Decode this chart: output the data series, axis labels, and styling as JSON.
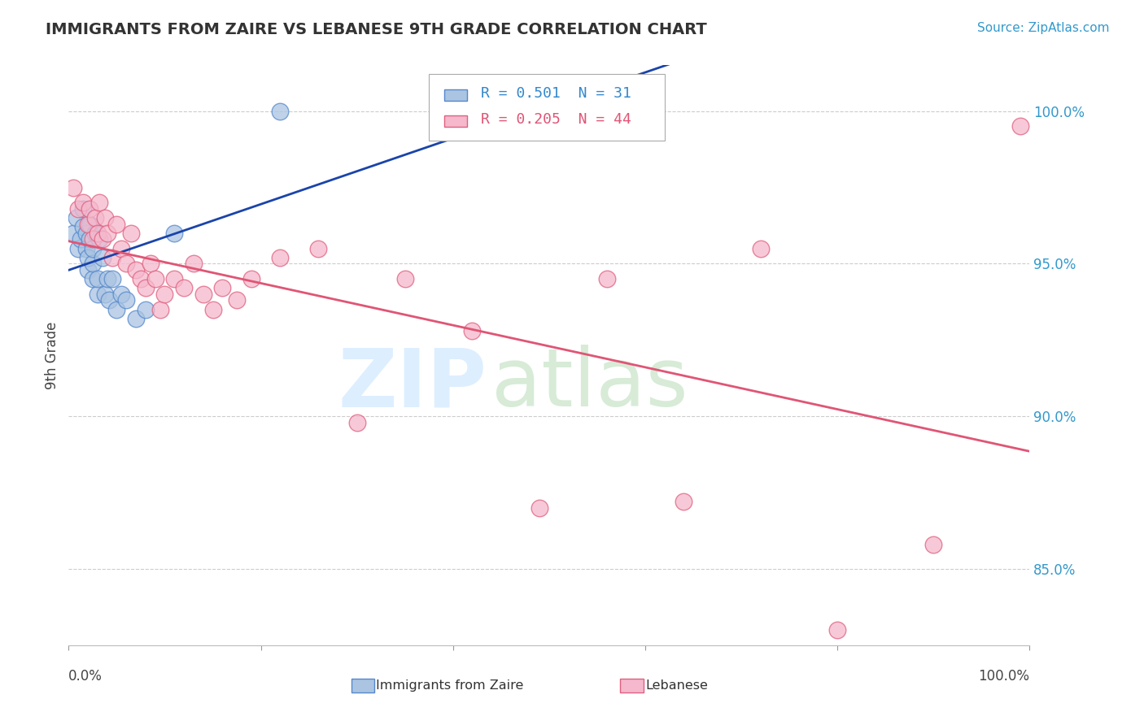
{
  "title": "IMMIGRANTS FROM ZAIRE VS LEBANESE 9TH GRADE CORRELATION CHART",
  "source": "Source: ZipAtlas.com",
  "ylabel": "9th Grade",
  "y_ticks": [
    0.85,
    0.9,
    0.95,
    1.0
  ],
  "y_tick_labels": [
    "85.0%",
    "90.0%",
    "95.0%",
    "100.0%"
  ],
  "x_lim": [
    0.0,
    1.0
  ],
  "y_lim": [
    0.825,
    1.015
  ],
  "blue_R": 0.501,
  "blue_N": 31,
  "pink_R": 0.205,
  "pink_N": 44,
  "blue_color": "#aac4e2",
  "blue_edge": "#5588cc",
  "pink_color": "#f5b8cc",
  "pink_edge": "#e06080",
  "blue_line_color": "#1a44aa",
  "pink_line_color": "#e05575",
  "blue_x": [
    0.005,
    0.008,
    0.01,
    0.012,
    0.015,
    0.015,
    0.018,
    0.018,
    0.02,
    0.02,
    0.022,
    0.022,
    0.025,
    0.025,
    0.025,
    0.028,
    0.03,
    0.03,
    0.032,
    0.035,
    0.038,
    0.04,
    0.042,
    0.045,
    0.05,
    0.055,
    0.06,
    0.07,
    0.08,
    0.11,
    0.22
  ],
  "blue_y": [
    0.96,
    0.965,
    0.955,
    0.958,
    0.962,
    0.968,
    0.955,
    0.96,
    0.948,
    0.952,
    0.958,
    0.963,
    0.945,
    0.95,
    0.955,
    0.96,
    0.94,
    0.945,
    0.958,
    0.952,
    0.94,
    0.945,
    0.938,
    0.945,
    0.935,
    0.94,
    0.938,
    0.932,
    0.935,
    0.96,
    1.0
  ],
  "pink_x": [
    0.005,
    0.01,
    0.015,
    0.02,
    0.022,
    0.025,
    0.028,
    0.03,
    0.032,
    0.035,
    0.038,
    0.04,
    0.045,
    0.05,
    0.055,
    0.06,
    0.065,
    0.07,
    0.075,
    0.08,
    0.085,
    0.09,
    0.095,
    0.1,
    0.11,
    0.12,
    0.13,
    0.14,
    0.15,
    0.16,
    0.175,
    0.19,
    0.22,
    0.26,
    0.3,
    0.35,
    0.42,
    0.49,
    0.56,
    0.64,
    0.72,
    0.8,
    0.9,
    0.99
  ],
  "pink_y": [
    0.975,
    0.968,
    0.97,
    0.963,
    0.968,
    0.958,
    0.965,
    0.96,
    0.97,
    0.958,
    0.965,
    0.96,
    0.952,
    0.963,
    0.955,
    0.95,
    0.96,
    0.948,
    0.945,
    0.942,
    0.95,
    0.945,
    0.935,
    0.94,
    0.945,
    0.942,
    0.95,
    0.94,
    0.935,
    0.942,
    0.938,
    0.945,
    0.952,
    0.955,
    0.898,
    0.945,
    0.928,
    0.87,
    0.945,
    0.872,
    0.955,
    0.83,
    0.858,
    0.995
  ]
}
